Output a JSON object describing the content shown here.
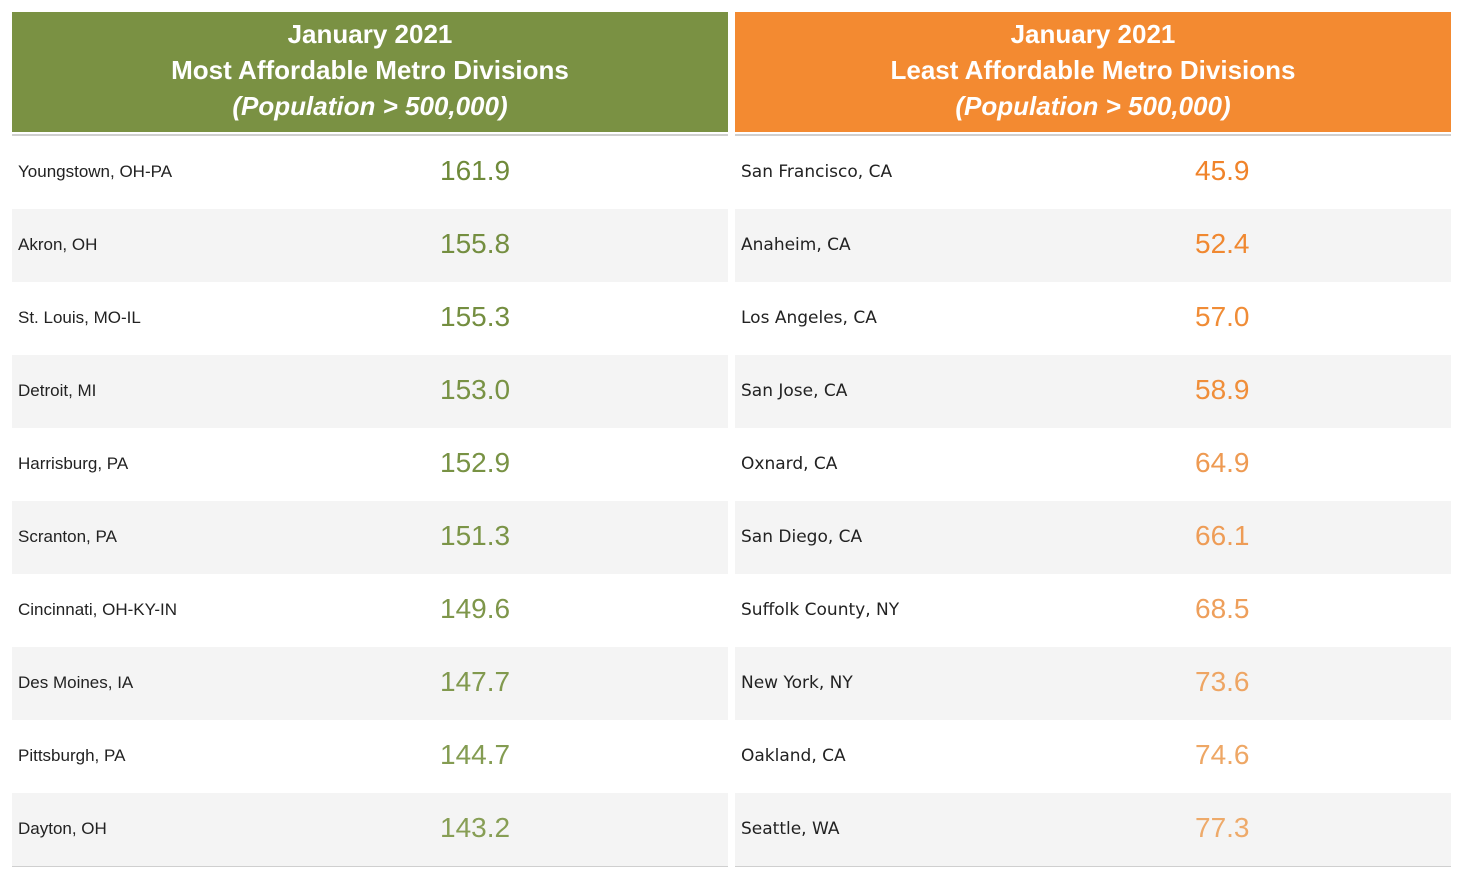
{
  "most": {
    "title1": "January 2021",
    "title2": "Most Affordable Metro Divisions",
    "title3": "(Population > 500,000)",
    "rows": [
      {
        "name": "Youngstown, OH-PA",
        "value": "161.9",
        "color": "#6f8a3a"
      },
      {
        "name": "Akron, OH",
        "value": "155.8",
        "color": "#748e40"
      },
      {
        "name": "St. Louis, MO-IL",
        "value": "155.3",
        "color": "#748e40"
      },
      {
        "name": "Detroit, MI",
        "value": "153.0",
        "color": "#789244"
      },
      {
        "name": "Harrisburg, PA",
        "value": "152.9",
        "color": "#789244"
      },
      {
        "name": "Scranton, PA",
        "value": "151.3",
        "color": "#7b9447"
      },
      {
        "name": "Cincinnati, OH-KY-IN",
        "value": "149.6",
        "color": "#7e964a"
      },
      {
        "name": "Des Moines, IA",
        "value": "147.7",
        "color": "#81994e"
      },
      {
        "name": "Pittsburgh, PA",
        "value": "144.7",
        "color": "#849c52"
      },
      {
        "name": "Dayton, OH",
        "value": "143.2",
        "color": "#879e55"
      }
    ]
  },
  "least": {
    "title1": "January 2021",
    "title2": "Least Affordable Metro Divisions",
    "title3": "(Population > 500,000)",
    "rows": [
      {
        "name": "San Francisco, CA",
        "value": "45.9",
        "color": "#f0832a"
      },
      {
        "name": "Anaheim, CA",
        "value": "52.4",
        "color": "#f08830"
      },
      {
        "name": "Los Angeles, CA",
        "value": "57.0",
        "color": "#f08c36"
      },
      {
        "name": "San Jose, CA",
        "value": "58.9",
        "color": "#f08e39"
      },
      {
        "name": "Oxnard, CA",
        "value": "64.9",
        "color": "#ee9a52"
      },
      {
        "name": "San Diego, CA",
        "value": "66.1",
        "color": "#ee9c56"
      },
      {
        "name": "Suffolk County, NY",
        "value": "68.5",
        "color": "#ee9f5b"
      },
      {
        "name": "New York, NY",
        "value": "73.6",
        "color": "#eea563"
      },
      {
        "name": "Oakland, CA",
        "value": "74.6",
        "color": "#eea765"
      },
      {
        "name": "Seattle, WA",
        "value": "77.3",
        "color": "#eeaa6a"
      }
    ]
  }
}
